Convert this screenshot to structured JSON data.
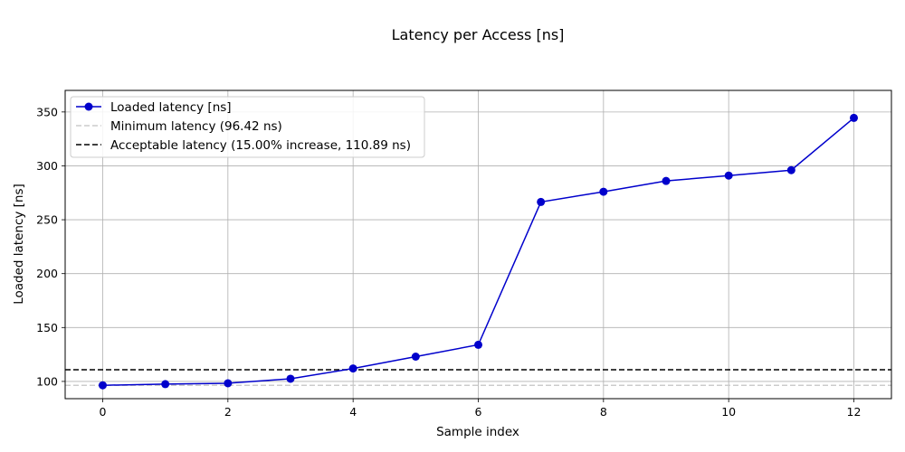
{
  "chart_data": {
    "type": "line",
    "title": "Latency per Access [ns]",
    "xlabel": "Sample index",
    "ylabel": "Loaded latency [ns]",
    "xlim": [
      -0.6,
      12.6
    ],
    "ylim": [
      84,
      370
    ],
    "x_ticks": [
      0,
      2,
      4,
      6,
      8,
      10,
      12
    ],
    "y_ticks": [
      100,
      150,
      200,
      250,
      300,
      350
    ],
    "grid": true,
    "legend_position": "top-left",
    "series": [
      {
        "name": "Loaded latency [ns]",
        "color": "#0000cc",
        "marker": "circle",
        "x": [
          0,
          1,
          2,
          3,
          4,
          5,
          6,
          7,
          8,
          9,
          10,
          11,
          12
        ],
        "values": [
          96.42,
          97.5,
          98.3,
          102.5,
          112,
          123,
          134,
          266.5,
          276,
          286,
          291,
          296,
          344.5
        ]
      }
    ],
    "reference_lines": [
      {
        "name": "Minimum latency (96.42 ns)",
        "value": 96.42,
        "color": "#cccccc",
        "style": "dashed"
      },
      {
        "name": "Acceptable latency (15.00% increase, 110.89 ns)",
        "value": 110.89,
        "color": "#000000",
        "style": "dashed"
      }
    ]
  }
}
